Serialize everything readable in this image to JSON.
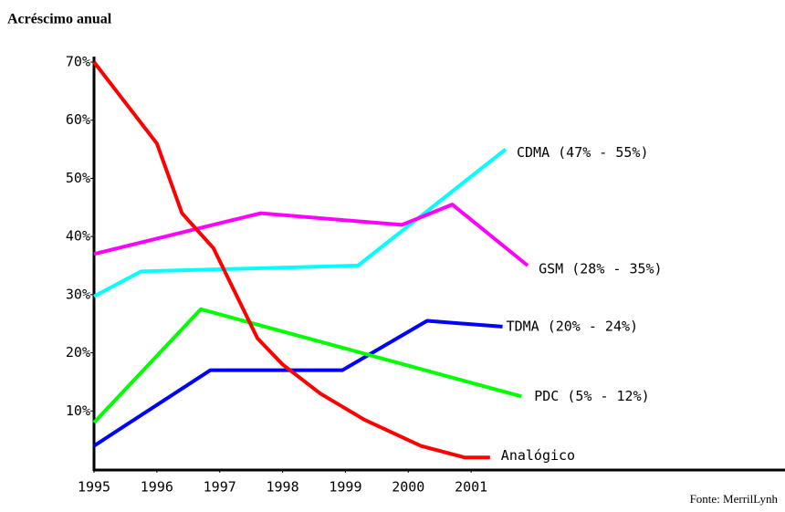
{
  "chart_data": {
    "type": "line",
    "title": "Acréscimo anual",
    "source": "Fonte: MerrilLynh",
    "xlim": [
      1995,
      2002
    ],
    "xticks": [
      1995,
      1996,
      1997,
      1998,
      1999,
      2000,
      2001
    ],
    "ylim": [
      0,
      70
    ],
    "yticks": [
      {
        "value": 10,
        "label": "10%"
      },
      {
        "value": 20,
        "label": "20%"
      },
      {
        "value": 30,
        "label": "30%"
      },
      {
        "value": 40,
        "label": "40%"
      },
      {
        "value": 50,
        "label": "50%"
      },
      {
        "value": 60,
        "label": "60%"
      },
      {
        "value": 70,
        "label": "70%"
      }
    ],
    "series": [
      {
        "name": "CDMA (47% - 55%)",
        "color": "#00ffff",
        "x": [
          1995,
          1995.75,
          1999.2,
          2001.55
        ],
        "values": [
          29.7,
          34,
          35,
          55
        ]
      },
      {
        "name": "GSM (28% - 35%)",
        "color": "#ff00ff",
        "x": [
          1995,
          1997.65,
          1999.9,
          2000.7,
          2001.9
        ],
        "values": [
          37,
          44,
          42,
          45.5,
          35
        ]
      },
      {
        "name": "TDMA (20% - 24%)",
        "color": "#0000ff",
        "x": [
          1995,
          1996.85,
          1998.95,
          2000.3,
          2001.5
        ],
        "values": [
          4,
          17,
          17,
          25.5,
          24.5
        ]
      },
      {
        "name": "PDC (5% - 12%)",
        "color": "#00ff00",
        "x": [
          1995,
          1996.7,
          2001.8
        ],
        "values": [
          8,
          27.5,
          12.5
        ]
      },
      {
        "name": "Analógico",
        "color": "#ff0000",
        "x": [
          1995,
          1996,
          1996.4,
          1996.9,
          1997.6,
          1998,
          1998.6,
          1999.3,
          2000.2,
          2000.9,
          2001.3
        ],
        "values": [
          70,
          56,
          44,
          38,
          22.5,
          18,
          13,
          8.5,
          4,
          2,
          2
        ]
      }
    ]
  }
}
